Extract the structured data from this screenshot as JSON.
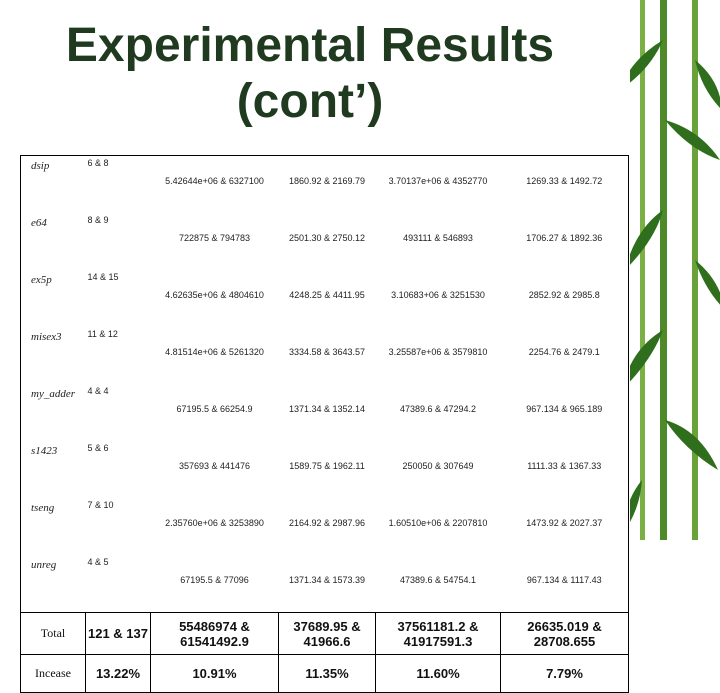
{
  "title": [
    "Experimental Results",
    "(cont’)"
  ],
  "table": {
    "rows": [
      [
        "dsip",
        "6 & 8",
        "5.42644e+06 & 6327100",
        "1860.92 & 2169.79",
        "3.70137e+06 & 4352770",
        "1269.33 & 1492.72"
      ],
      [
        "e64",
        "8 & 9",
        "722875 & 794783",
        "2501.30 & 2750.12",
        "493111 & 546893",
        "1706.27 & 1892.36"
      ],
      [
        "ex5p",
        "14 & 15",
        "4.62635e+06 & 4804610",
        "4248.25 & 4411.95",
        "3.10683+06 & 3251530",
        "2852.92 & 2985.8"
      ],
      [
        "misex3",
        "11 & 12",
        "4.81514e+06 & 5261320",
        "3334.58 & 3643.57",
        "3.25587e+06 & 3579810",
        "2254.76 & 2479.1"
      ],
      [
        "my_adder",
        "4 & 4",
        "67195.5 & 66254.9",
        "1371.34 & 1352.14",
        "47389.6 & 47294.2",
        "967.134 & 965.189"
      ],
      [
        "s1423",
        "5 & 6",
        "357693 & 441476",
        "1589.75 & 1962.11",
        "250050 & 307649",
        "1111.33 & 1367.33"
      ],
      [
        "tseng",
        "7 & 10",
        "2.35760e+06 & 3253890",
        "2164.92 & 2987.96",
        "1.60510e+06 & 2207810",
        "1473.92 & 2027.37"
      ],
      [
        "unreg",
        "4 & 5",
        "67195.5 & 77096",
        "1371.34 & 1573.39",
        "47389.6 & 54754.1",
        "967.134 & 1117.43"
      ],
      [
        "Total",
        "121 & 137",
        "55486974 & 61541492.9",
        "37689.95 & 41966.6",
        "37561181.2 & 41917591.3",
        "26635.019 & 28708.655"
      ],
      [
        "Incease",
        "13.22%",
        "10.91%",
        "11.35%",
        "11.60%",
        "7.79%"
      ]
    ]
  }
}
